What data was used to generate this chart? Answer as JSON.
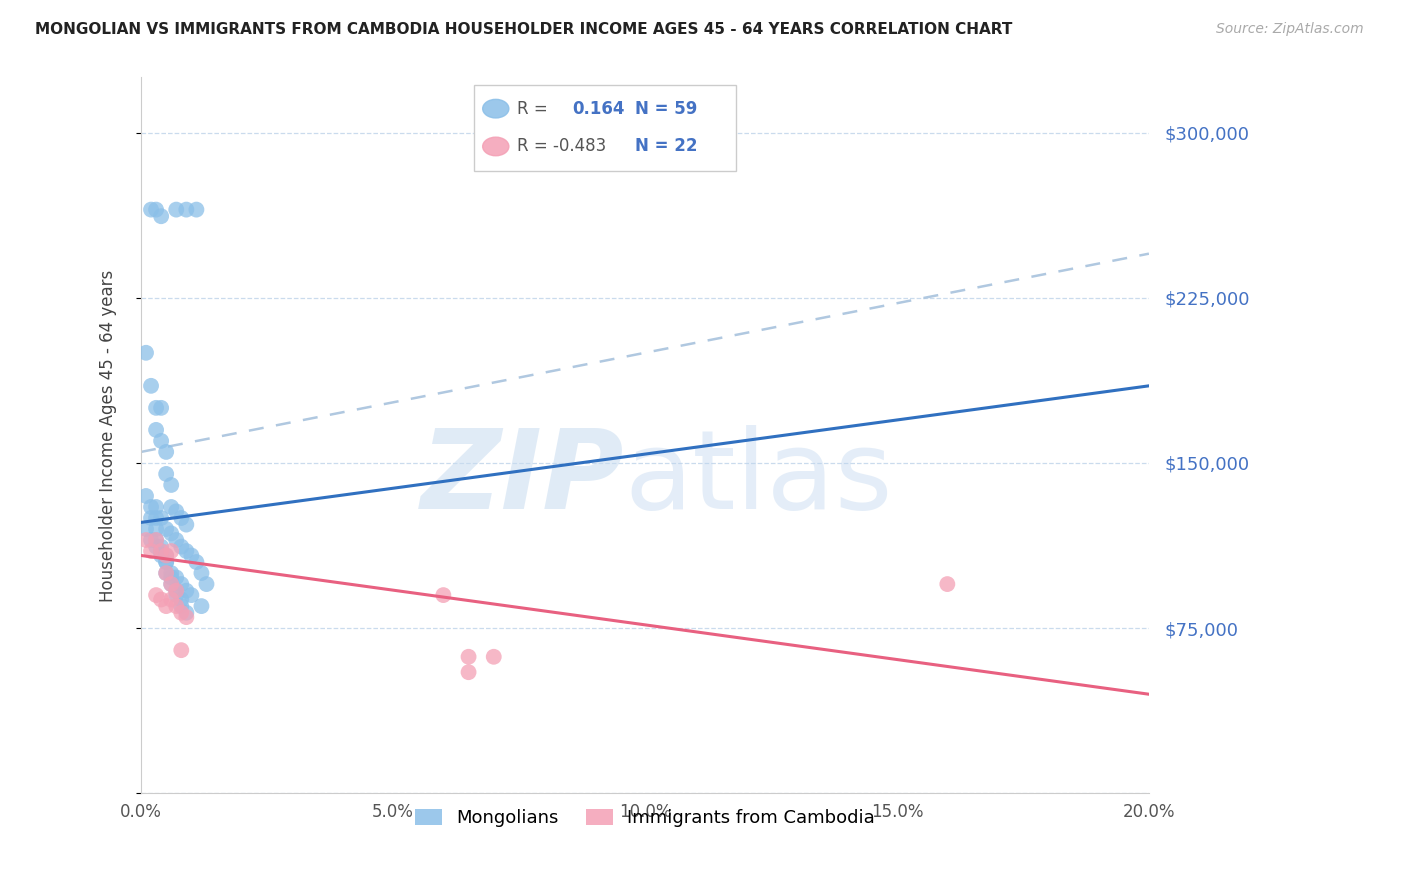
{
  "title": "MONGOLIAN VS IMMIGRANTS FROM CAMBODIA HOUSEHOLDER INCOME AGES 45 - 64 YEARS CORRELATION CHART",
  "source": "Source: ZipAtlas.com",
  "ylabel": "Householder Income Ages 45 - 64 years",
  "xlim": [
    0.0,
    0.2
  ],
  "ylim": [
    0,
    325000
  ],
  "yticks": [
    0,
    75000,
    150000,
    225000,
    300000
  ],
  "xticks": [
    0.0,
    0.05,
    0.1,
    0.15,
    0.2
  ],
  "xtick_labels": [
    "0.0%",
    "5.0%",
    "10.0%",
    "15.0%",
    "20.0%"
  ],
  "mongolian_color": "#8BBFE8",
  "cambodia_color": "#F4A0B5",
  "mongolian_line_color": "#3070C0",
  "cambodia_line_color": "#E86080",
  "dashed_line_color": "#B0C8E0",
  "mongolians_label": "Mongolians",
  "cambodia_label": "Immigrants from Cambodia",
  "mong_x": [
    0.002,
    0.003,
    0.004,
    0.007,
    0.009,
    0.011,
    0.001,
    0.002,
    0.003,
    0.003,
    0.004,
    0.004,
    0.005,
    0.005,
    0.006,
    0.001,
    0.002,
    0.002,
    0.003,
    0.003,
    0.003,
    0.004,
    0.004,
    0.005,
    0.005,
    0.005,
    0.006,
    0.006,
    0.007,
    0.007,
    0.008,
    0.008,
    0.009,
    0.003,
    0.004,
    0.005,
    0.006,
    0.007,
    0.008,
    0.009,
    0.01,
    0.011,
    0.012,
    0.013,
    0.001,
    0.002,
    0.003,
    0.004,
    0.005,
    0.006,
    0.007,
    0.008,
    0.009,
    0.01,
    0.012,
    0.006,
    0.007,
    0.008,
    0.009
  ],
  "mong_y": [
    265000,
    265000,
    262000,
    265000,
    265000,
    265000,
    200000,
    185000,
    175000,
    165000,
    175000,
    160000,
    155000,
    145000,
    140000,
    135000,
    130000,
    125000,
    125000,
    120000,
    115000,
    112000,
    110000,
    108000,
    105000,
    100000,
    98000,
    95000,
    92000,
    90000,
    88000,
    85000,
    82000,
    130000,
    125000,
    120000,
    118000,
    115000,
    112000,
    110000,
    108000,
    105000,
    100000,
    95000,
    120000,
    115000,
    112000,
    108000,
    105000,
    100000,
    98000,
    95000,
    92000,
    90000,
    85000,
    130000,
    128000,
    125000,
    122000
  ],
  "camb_x": [
    0.001,
    0.002,
    0.003,
    0.004,
    0.005,
    0.003,
    0.004,
    0.005,
    0.006,
    0.005,
    0.006,
    0.007,
    0.006,
    0.007,
    0.008,
    0.009,
    0.008,
    0.06,
    0.065,
    0.07,
    0.16,
    0.065
  ],
  "camb_y": [
    115000,
    110000,
    115000,
    110000,
    108000,
    90000,
    88000,
    85000,
    110000,
    100000,
    95000,
    92000,
    88000,
    85000,
    82000,
    80000,
    65000,
    90000,
    62000,
    62000,
    95000,
    55000
  ],
  "mong_line_x0": 0.0,
  "mong_line_x1": 0.2,
  "mong_line_y0": 123000,
  "mong_line_y1": 185000,
  "camb_line_x0": 0.0,
  "camb_line_x1": 0.2,
  "camb_line_y0": 108000,
  "camb_line_y1": 45000,
  "dash_line_x0": 0.0,
  "dash_line_x1": 0.2,
  "dash_line_y0": 155000,
  "dash_line_y1": 245000
}
